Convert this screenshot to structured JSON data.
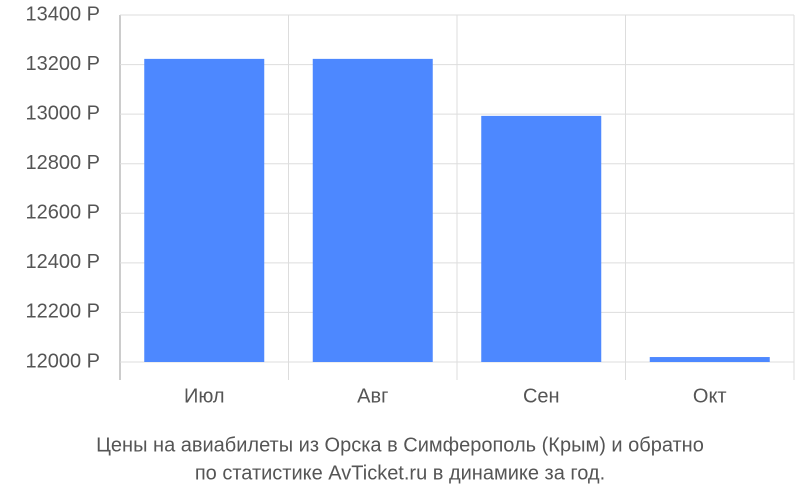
{
  "chart_data": {
    "type": "bar",
    "title": [
      "Цены на авиабилеты из Орска в Симферополь (Крым) и обратно",
      "по статистике AvTicket.ru в динамике за год."
    ],
    "categories": [
      "Июл",
      "Авг",
      "Сен",
      "Окт"
    ],
    "values": [
      13223,
      13223,
      12993,
      12020
    ],
    "color": "#4d88ff",
    "ylim": [
      12000,
      13400
    ],
    "yticks": [
      {
        "value": 12000,
        "label": "12000 Р"
      },
      {
        "value": 12200,
        "label": "12200 Р"
      },
      {
        "value": 12400,
        "label": "12400 Р"
      },
      {
        "value": 12600,
        "label": "12600 Р"
      },
      {
        "value": 12800,
        "label": "12800 Р"
      },
      {
        "value": 13000,
        "label": "13000 Р"
      },
      {
        "value": 13200,
        "label": "13200 Р"
      },
      {
        "value": 13400,
        "label": "13400 Р"
      }
    ],
    "grid": true
  }
}
